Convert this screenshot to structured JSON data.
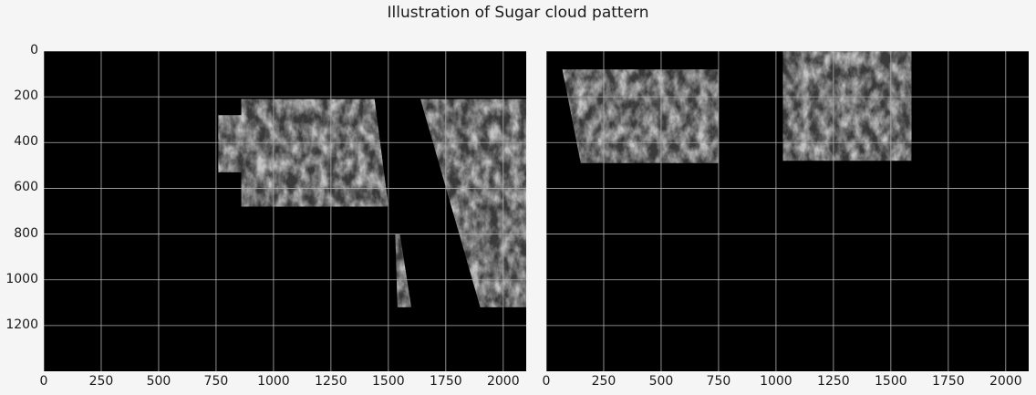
{
  "figure": {
    "title": "Illustration of Sugar cloud pattern"
  },
  "axes": {
    "x_ticks": [
      "0",
      "250",
      "500",
      "750",
      "1000",
      "1250",
      "1500",
      "1750",
      "2000"
    ],
    "y_ticks": [
      "0",
      "200",
      "400",
      "600",
      "800",
      "1000",
      "1200"
    ],
    "x_tick_values": [
      0,
      250,
      500,
      750,
      1000,
      1250,
      1500,
      1750,
      2000
    ],
    "y_tick_values": [
      0,
      200,
      400,
      600,
      800,
      1000,
      1200
    ],
    "x_range": [
      0,
      2100
    ],
    "y_range": [
      1400,
      0
    ],
    "grid": true
  },
  "panels": [
    {
      "name": "left-panel",
      "shows_y_tick_labels": true,
      "regions": [
        {
          "points": [
            [
              760,
              280
            ],
            [
              860,
              280
            ],
            [
              860,
              210
            ],
            [
              1440,
              210
            ],
            [
              1500,
              680
            ],
            [
              860,
              680
            ],
            [
              860,
              530
            ],
            [
              760,
              530
            ]
          ]
        },
        {
          "points": [
            [
              1640,
              210
            ],
            [
              2100,
              210
            ],
            [
              2100,
              1120
            ],
            [
              1900,
              1120
            ]
          ]
        },
        {
          "points": [
            [
              1530,
              800
            ],
            [
              1550,
              800
            ],
            [
              1600,
              1120
            ],
            [
              1540,
              1120
            ]
          ]
        }
      ]
    },
    {
      "name": "right-panel",
      "shows_y_tick_labels": false,
      "regions": [
        {
          "points": [
            [
              70,
              80
            ],
            [
              750,
              80
            ],
            [
              750,
              490
            ],
            [
              150,
              490
            ]
          ]
        },
        {
          "points": [
            [
              1030,
              0
            ],
            [
              1590,
              0
            ],
            [
              1590,
              480
            ],
            [
              1030,
              480
            ]
          ]
        }
      ]
    }
  ]
}
